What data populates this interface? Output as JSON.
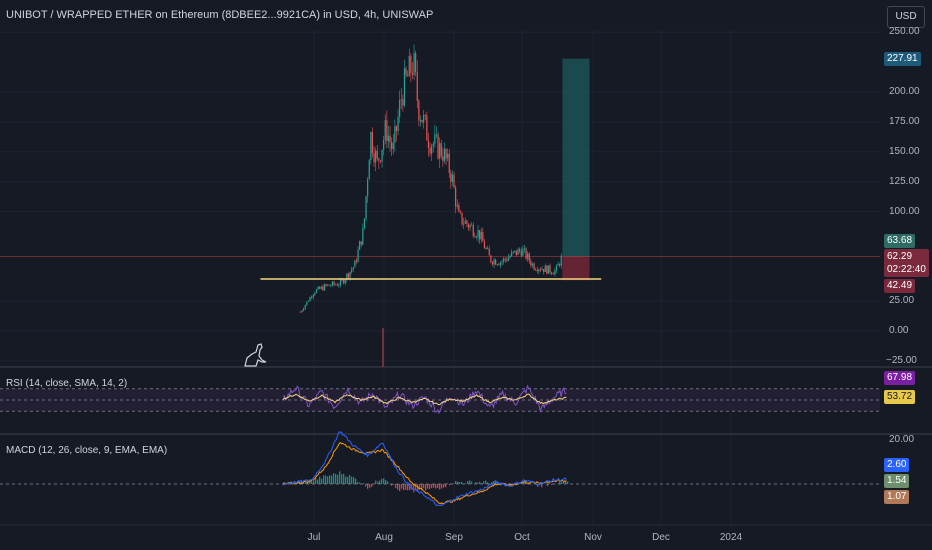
{
  "header": {
    "title": "UNIBOT / WRAPPED ETHER on Ethereum (8DBEE2...9921CA) in USD, 4h, UNISWAP",
    "currency_button": "USD"
  },
  "chart_data": [
    {
      "type": "candlestick",
      "title": "UNIBOT / WRAPPED ETHER on Ethereum (8DBEE2...9921CA) in USD, 4h, UNISWAP",
      "x_ticks": [
        "Jul",
        "Aug",
        "Sep",
        "Oct",
        "Nov",
        "Dec",
        "2024"
      ],
      "y_ticks": [
        "250.00",
        "200.00",
        "175.00",
        "150.00",
        "125.00",
        "100.00",
        "25.00",
        "0.00",
        "−25.00"
      ],
      "ylim": [
        -25,
        250
      ],
      "grid": true,
      "approx_price_path": [
        {
          "date": "2023-06-25",
          "price": 16
        },
        {
          "date": "2023-07-01",
          "price": 33
        },
        {
          "date": "2023-07-07",
          "price": 38
        },
        {
          "date": "2023-07-13",
          "price": 40
        },
        {
          "date": "2023-07-19",
          "price": 55
        },
        {
          "date": "2023-07-23",
          "price": 85
        },
        {
          "date": "2023-07-26",
          "price": 165
        },
        {
          "date": "2023-07-29",
          "price": 140
        },
        {
          "date": "2023-08-02",
          "price": 170
        },
        {
          "date": "2023-08-05",
          "price": 150
        },
        {
          "date": "2023-08-09",
          "price": 200
        },
        {
          "date": "2023-08-14",
          "price": 225
        },
        {
          "date": "2023-08-16",
          "price": 190
        },
        {
          "date": "2023-08-21",
          "price": 160
        },
        {
          "date": "2023-08-27",
          "price": 150
        },
        {
          "date": "2023-08-31",
          "price": 130
        },
        {
          "date": "2023-09-03",
          "price": 95
        },
        {
          "date": "2023-09-08",
          "price": 88
        },
        {
          "date": "2023-09-12",
          "price": 82
        },
        {
          "date": "2023-09-17",
          "price": 60
        },
        {
          "date": "2023-09-22",
          "price": 58
        },
        {
          "date": "2023-09-26",
          "price": 63
        },
        {
          "date": "2023-10-01",
          "price": 68
        },
        {
          "date": "2023-10-06",
          "price": 55
        },
        {
          "date": "2023-10-11",
          "price": 52
        },
        {
          "date": "2023-10-16",
          "price": 50
        },
        {
          "date": "2023-10-19",
          "price": 63
        }
      ],
      "support_level": {
        "price": 42.49,
        "from": "2023-06-25",
        "to": "2023-10-30"
      },
      "position": {
        "entry": 62.29,
        "target": 227.91,
        "stop": 42.49,
        "from": "2023-10-19",
        "to": "2023-10-31"
      },
      "price_badges": {
        "target": "227.91",
        "current": "63.68",
        "entry": "62.29",
        "countdown": "02:22:40",
        "stop": "42.49"
      },
      "colors": {
        "up": "#26a69a",
        "down": "#ef5350",
        "support": "#f5d77e",
        "target_zone": "#1c5a5c",
        "stop_zone": "#6e2635"
      }
    },
    {
      "type": "line",
      "title": "RSI (14, close, SMA, 14, 2)",
      "series": [
        {
          "values_approx": [
            50,
            72,
            40,
            65,
            38,
            70,
            45,
            62,
            35,
            60,
            40,
            55,
            30,
            58,
            42,
            68,
            35,
            60,
            45,
            72,
            33,
            55,
            68
          ]
        },
        {
          "values_approx": [
            52,
            60,
            48,
            58,
            46,
            60,
            50,
            56,
            44,
            54,
            46,
            52,
            42,
            52,
            48,
            58,
            46,
            54,
            50,
            60,
            44,
            50,
            54
          ]
        }
      ],
      "current_values": [
        "67.98",
        "53.72"
      ],
      "colors": {
        "rsi": "#7e57c2",
        "sma": "#f5d77e",
        "band": "#2a2239"
      }
    },
    {
      "type": "line",
      "title": "MACD (12, 26, close, 9, EMA, EMA)",
      "y_ticks": [
        "20.00"
      ],
      "series": [
        {
          "values_approx": [
            0,
            1,
            2,
            12,
            28,
            20,
            15,
            22,
            8,
            -2,
            -6,
            -12,
            -8,
            -5,
            -3,
            1,
            -1,
            2,
            0,
            2,
            2.6
          ]
        },
        {
          "values_approx": [
            0,
            0.5,
            1.5,
            9,
            22,
            18,
            16,
            18,
            10,
            1,
            -4,
            -10,
            -9,
            -6,
            -4,
            0,
            -0.5,
            1,
            0.5,
            1.5,
            1.54
          ]
        }
      ],
      "histogram_approx": [
        0,
        1,
        2,
        4,
        6,
        3,
        -2,
        4,
        -3,
        -4,
        -3,
        -2,
        1,
        1,
        1,
        1,
        -1,
        1,
        -1,
        0.5,
        1.07
      ],
      "current_values": [
        "2.60",
        "1.54",
        "1.07"
      ],
      "colors": {
        "macd": "#2962ff",
        "signal": "#ff9800",
        "hist_up": "#26a69a",
        "hist_down": "#ef5350"
      }
    }
  ],
  "indicators": {
    "rsi_label": "RSI (14, close, SMA, 14, 2)",
    "macd_label": "MACD (12, 26, close, 9, EMA, EMA)"
  }
}
